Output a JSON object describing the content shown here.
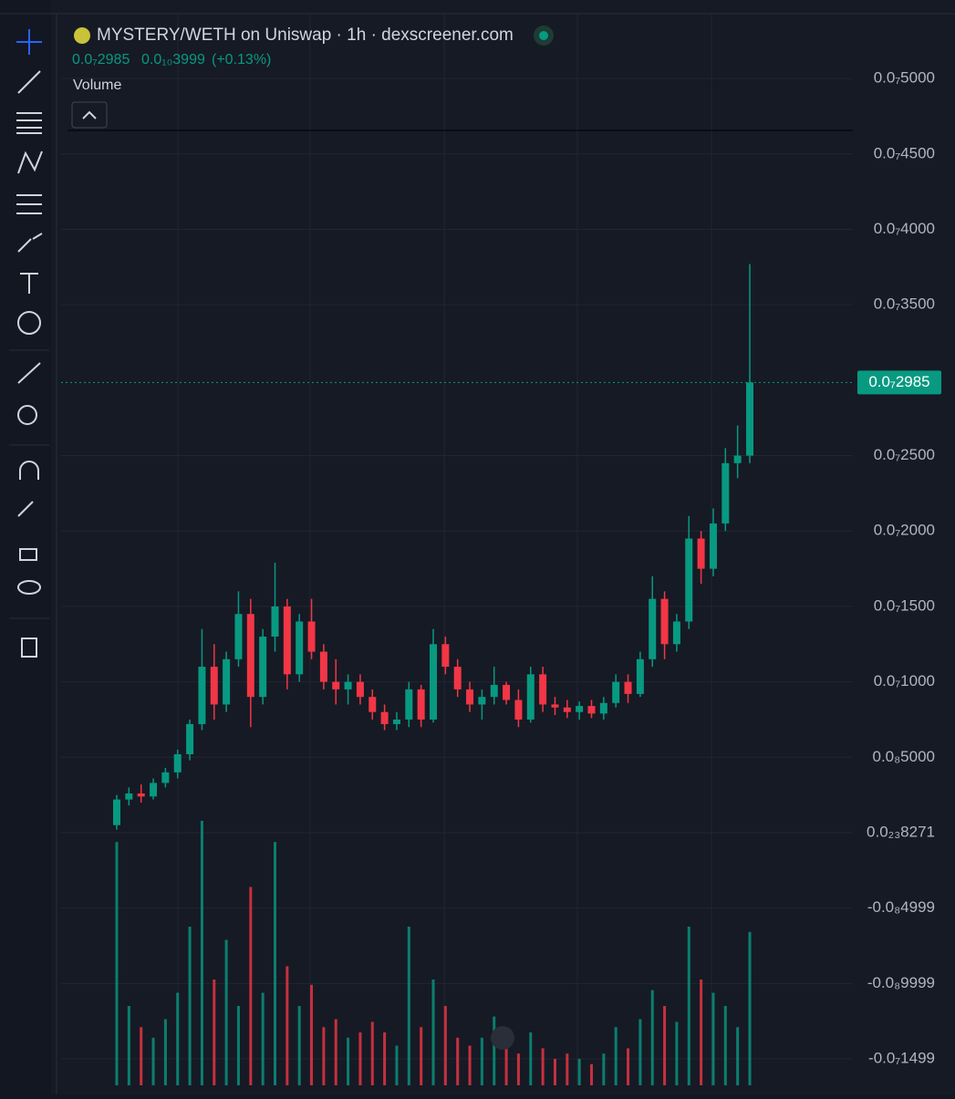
{
  "chart_data": {
    "type": "candlestick",
    "title": "MYSTERY/WETH on Uniswap · 1h · dexscreener.com",
    "last_price": "0.0₇2985",
    "change": "0.0₁₀3999",
    "change_pct": "(+0.13%)",
    "volume_label": "Volume",
    "current_price": {
      "value": 2.985e-08,
      "label": "0.0₇2985"
    },
    "up_color": "#089981",
    "down_color": "#f23645",
    "ylim": [
      -1.675e-08,
      5.43e-08
    ],
    "yticks": [
      {
        "value": 5e-08,
        "label": "0.0₇5000"
      },
      {
        "value": 4.5e-08,
        "label": "0.0₇4500"
      },
      {
        "value": 4e-08,
        "label": "0.0₇4000"
      },
      {
        "value": 3.5e-08,
        "label": "0.0₇3500"
      },
      {
        "value": 2.5e-08,
        "label": "0.0₇2500"
      },
      {
        "value": 2e-08,
        "label": "0.0₇2000"
      },
      {
        "value": 1.5e-08,
        "label": "0.0₇1500"
      },
      {
        "value": 1e-08,
        "label": "0.0₇1000"
      },
      {
        "value": 5e-09,
        "label": "0.0₈5000"
      },
      {
        "value": 8.271e-24,
        "label": "0.0₂₃8271"
      },
      {
        "value": -4.999e-09,
        "label": "-0.0₈4999"
      },
      {
        "value": -9.999e-09,
        "label": "-0.0₈9999"
      },
      {
        "value": -1.499e-08,
        "label": "-0.0₇1499"
      }
    ],
    "grid": true,
    "open": [
      5e-10,
      2.2e-09,
      2.6e-09,
      2.4e-09,
      3.3e-09,
      4e-09,
      5.2e-09,
      7.2e-09,
      1.1e-08,
      8.5e-09,
      1.15e-08,
      1.45e-08,
      9e-09,
      1.3e-08,
      1.5e-08,
      1.05e-08,
      1.4e-08,
      1.2e-08,
      1e-08,
      9.5e-09,
      1e-08,
      9e-09,
      8e-09,
      7.2e-09,
      7.5e-09,
      9.5e-09,
      7.5e-09,
      1.25e-08,
      1.1e-08,
      9.5e-09,
      8.5e-09,
      9e-09,
      9.8e-09,
      8.8e-09,
      7.5e-09,
      1.05e-08,
      8.5e-09,
      8.3e-09,
      8e-09,
      8.4e-09,
      7.9e-09,
      8.6e-09,
      1e-08,
      9.2e-09,
      1.15e-08,
      1.55e-08,
      1.25e-08,
      1.4e-08,
      1.95e-08,
      1.75e-08,
      2.05e-08,
      2.45e-08,
      2.5e-08
    ],
    "high": [
      2.5e-09,
      3e-09,
      3.2e-09,
      3.6e-09,
      4.3e-09,
      5.5e-09,
      7.5e-09,
      1.35e-08,
      1.25e-08,
      1.2e-08,
      1.6e-08,
      1.55e-08,
      1.35e-08,
      1.79e-08,
      1.55e-08,
      1.45e-08,
      1.55e-08,
      1.25e-08,
      1.15e-08,
      1.05e-08,
      1.05e-08,
      9.5e-09,
      8.5e-09,
      8e-09,
      1e-08,
      9.8e-09,
      1.35e-08,
      1.3e-08,
      1.15e-08,
      1e-08,
      9.5e-09,
      1.1e-08,
      1e-08,
      9.5e-09,
      1.1e-08,
      1.1e-08,
      9e-09,
      8.8e-09,
      8.7e-09,
      8.8e-09,
      9e-09,
      1.05e-08,
      1.05e-08,
      1.2e-08,
      1.7e-08,
      1.6e-08,
      1.45e-08,
      2.1e-08,
      2e-08,
      2.15e-08,
      2.55e-08,
      2.7e-08,
      3.77e-08
    ],
    "low": [
      2e-10,
      1.8e-09,
      2e-09,
      2.2e-09,
      3e-09,
      3.6e-09,
      4.8e-09,
      6.8e-09,
      7.5e-09,
      8e-09,
      1.1e-08,
      7e-09,
      8.5e-09,
      1.2e-08,
      9.5e-09,
      1e-08,
      1.15e-08,
      9.5e-09,
      8.5e-09,
      8.5e-09,
      8.5e-09,
      7.5e-09,
      6.8e-09,
      6.8e-09,
      7e-09,
      7e-09,
      7.3e-09,
      1.05e-08,
      9e-09,
      8e-09,
      7.5e-09,
      8.5e-09,
      8.5e-09,
      7e-09,
      7.3e-09,
      8e-09,
      7.8e-09,
      7.6e-09,
      7.5e-09,
      7.6e-09,
      7.5e-09,
      8.3e-09,
      8.6e-09,
      9e-09,
      1.1e-08,
      1.15e-08,
      1.2e-08,
      1.35e-08,
      1.65e-08,
      1.7e-08,
      2e-08,
      2.35e-08,
      2.45e-08
    ],
    "close": [
      2.2e-09,
      2.6e-09,
      2.4e-09,
      3.3e-09,
      4e-09,
      5.2e-09,
      7.2e-09,
      1.1e-08,
      8.5e-09,
      1.15e-08,
      1.45e-08,
      9e-09,
      1.3e-08,
      1.5e-08,
      1.05e-08,
      1.4e-08,
      1.2e-08,
      1e-08,
      9.5e-09,
      1e-08,
      9e-09,
      8e-09,
      7.2e-09,
      7.5e-09,
      9.5e-09,
      7.5e-09,
      1.25e-08,
      1.1e-08,
      9.5e-09,
      8.5e-09,
      9e-09,
      9.8e-09,
      8.8e-09,
      7.5e-09,
      1.05e-08,
      8.5e-09,
      8.3e-09,
      8e-09,
      8.4e-09,
      7.9e-09,
      8.6e-09,
      1e-08,
      9.2e-09,
      1.15e-08,
      1.55e-08,
      1.25e-08,
      1.4e-08,
      1.95e-08,
      1.75e-08,
      2.05e-08,
      2.45e-08,
      2.5e-08,
      2.985e-08
    ],
    "volume": [
      92,
      30,
      22,
      18,
      25,
      35,
      60,
      100,
      40,
      55,
      30,
      75,
      35,
      92,
      45,
      30,
      38,
      22,
      25,
      18,
      20,
      24,
      20,
      15,
      60,
      22,
      40,
      30,
      18,
      15,
      18,
      26,
      16,
      12,
      20,
      14,
      10,
      12,
      10,
      8,
      12,
      22,
      14,
      25,
      36,
      30,
      24,
      60,
      40,
      35,
      30,
      22,
      58
    ]
  }
}
